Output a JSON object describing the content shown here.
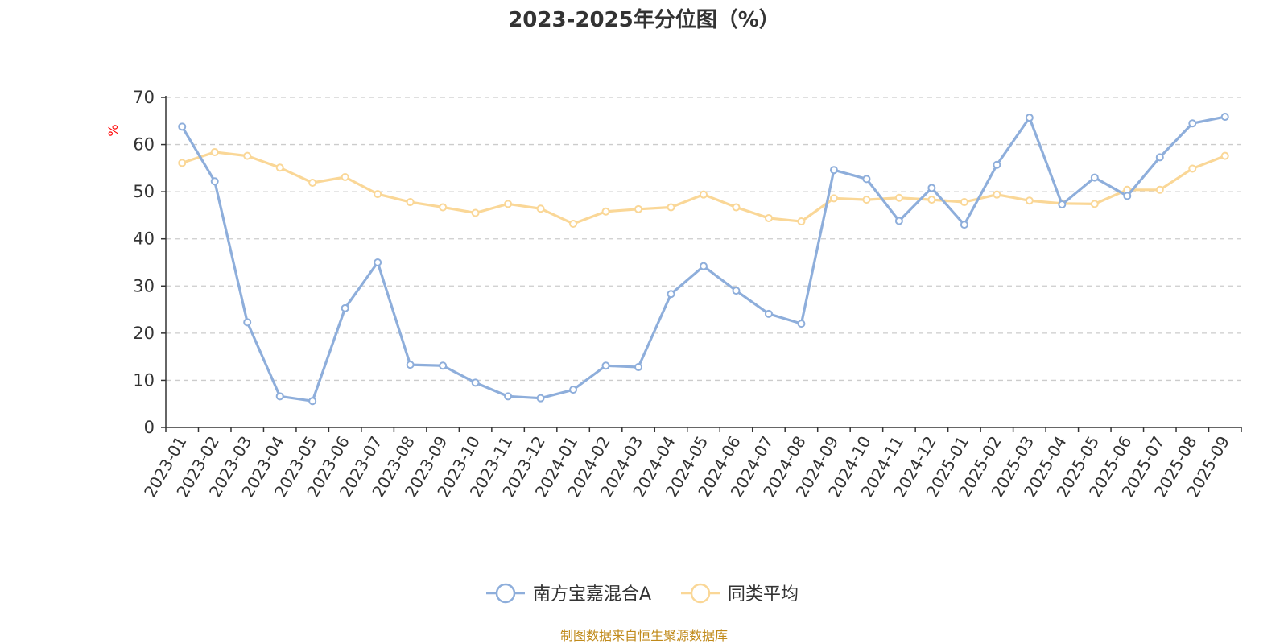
{
  "chart_data": {
    "type": "line",
    "title": "2023-2025年分位图（%）",
    "ylabel": "%",
    "xlabel": "",
    "ylim": [
      0,
      70
    ],
    "yticks": [
      0,
      10,
      20,
      30,
      40,
      50,
      60,
      70
    ],
    "grid": true,
    "legend_position": "bottom-center",
    "categories": [
      "2023-01",
      "2023-02",
      "2023-03",
      "2023-04",
      "2023-05",
      "2023-06",
      "2023-07",
      "2023-08",
      "2023-09",
      "2023-10",
      "2023-11",
      "2023-12",
      "2024-01",
      "2024-02",
      "2024-03",
      "2024-04",
      "2024-05",
      "2024-06",
      "2024-07",
      "2024-08",
      "2024-09",
      "2024-10",
      "2024-11",
      "2024-12",
      "2025-01",
      "2025-02",
      "2025-03",
      "2025-04",
      "2025-05",
      "2025-06",
      "2025-07",
      "2025-08",
      "2025-09"
    ],
    "series": [
      {
        "name": "南方宝嘉混合A",
        "color": "#8eaedb",
        "values": [
          63.8,
          52.2,
          22.3,
          6.6,
          5.6,
          25.3,
          35.0,
          13.3,
          13.1,
          9.5,
          6.6,
          6.2,
          8.0,
          13.1,
          12.8,
          28.3,
          34.2,
          29.0,
          24.1,
          22.0,
          54.6,
          52.7,
          43.8,
          50.8,
          43.0,
          55.7,
          65.7,
          47.3,
          53.0,
          49.1,
          57.3,
          64.5,
          65.9
        ]
      },
      {
        "name": "同类平均",
        "color": "#fad797",
        "values": [
          56.1,
          58.4,
          57.6,
          55.1,
          51.9,
          53.1,
          49.5,
          47.8,
          46.7,
          45.5,
          47.4,
          46.4,
          43.2,
          45.8,
          46.3,
          46.7,
          49.4,
          46.7,
          44.4,
          43.7,
          48.6,
          48.3,
          48.7,
          48.3,
          47.8,
          49.4,
          48.1,
          47.5,
          47.4,
          50.4,
          50.4,
          54.9,
          57.6
        ]
      }
    ]
  },
  "footer": {
    "source": "制图数据来自恒生聚源数据库"
  }
}
